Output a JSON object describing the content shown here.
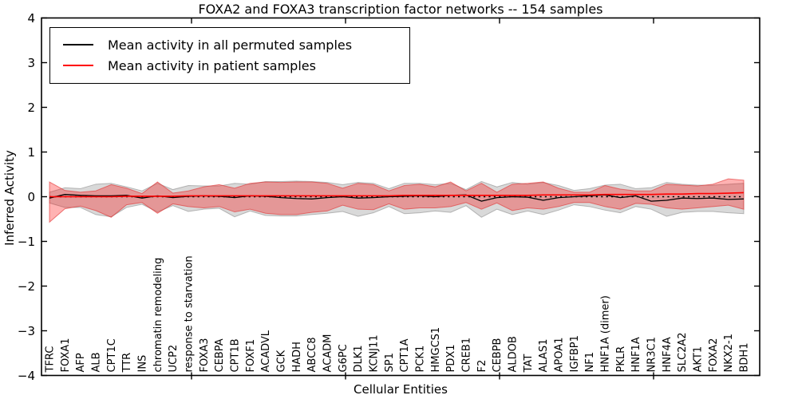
{
  "chart": {
    "title": "FOXA2 and FOXA3 transcription factor networks -- 154 samples",
    "xlabel": "Cellular Entities",
    "ylabel": "Inferred Activity",
    "legend": [
      {
        "label": "Mean activity in all permuted samples",
        "color": "#000000"
      },
      {
        "label": "Mean activity in patient samples",
        "color": "#ff0000"
      }
    ],
    "ytick_labels": [
      "4",
      "3",
      "2",
      "1",
      "0",
      "−1",
      "−2",
      "−3",
      "−4"
    ]
  },
  "chart_data": {
    "type": "line",
    "title": "FOXA2 and FOXA3 transcription factor networks -- 154 samples",
    "xlabel": "Cellular Entities",
    "ylabel": "Inferred Activity",
    "ylim": [
      -4,
      4
    ],
    "yticks": [
      4,
      3,
      2,
      1,
      0,
      -1,
      -2,
      -3,
      -4
    ],
    "grid": false,
    "legend_position": "upper left",
    "categories": [
      "TFRC",
      "FOXA1",
      "AFP",
      "ALB",
      "CPT1C",
      "TTR",
      "INS",
      "chromatin remodeling",
      "UCP2",
      "response to starvation",
      "FOXA3",
      "CEBPA",
      "CPT1B",
      "FOXF1",
      "ACADVL",
      "GCK",
      "HADH",
      "ABCC8",
      "ACADM",
      "G6PC",
      "DLK1",
      "KCNJ11",
      "SP1",
      "CPT1A",
      "PCK1",
      "HMGCS1",
      "PDX1",
      "CREB1",
      "F2",
      "CEBPB",
      "ALDOB",
      "TAT",
      "ALAS1",
      "APOA1",
      "IGFBP1",
      "NF1",
      "HNF1A (dimer)",
      "PKLR",
      "HNF1A",
      "NR3C1",
      "HNF4A",
      "SLC2A2",
      "AKT1",
      "FOXA2",
      "NKX2-1",
      "BDH1"
    ],
    "series": [
      {
        "name": "Mean activity in all permuted samples",
        "color": "#000000",
        "style": "solid",
        "width": 1.3,
        "values": [
          -0.03,
          0.05,
          0.03,
          0.02,
          0.02,
          0.03,
          -0.03,
          0.02,
          -0.02,
          0.01,
          0.02,
          0.01,
          -0.02,
          0.02,
          0.01,
          -0.02,
          -0.04,
          -0.05,
          -0.02,
          0.0,
          -0.03,
          -0.02,
          0.0,
          0.01,
          0.02,
          0.0,
          0.03,
          0.04,
          -0.1,
          -0.02,
          0.0,
          -0.01,
          -0.08,
          -0.02,
          0.0,
          0.02,
          0.04,
          -0.02,
          0.02,
          -0.1,
          -0.08,
          -0.03,
          -0.04,
          -0.03,
          -0.06,
          -0.05
        ]
      },
      {
        "name": "Mean activity in patient samples",
        "color": "#ff0000",
        "style": "solid",
        "width": 1.6,
        "values": [
          0.0,
          0.0,
          0.0,
          0.0,
          0.0,
          0.01,
          0.01,
          0.01,
          0.01,
          0.02,
          0.02,
          0.02,
          0.02,
          0.02,
          0.02,
          0.02,
          0.02,
          0.02,
          0.02,
          0.02,
          0.02,
          0.02,
          0.02,
          0.03,
          0.03,
          0.03,
          0.03,
          0.03,
          0.03,
          0.03,
          0.03,
          0.03,
          0.04,
          0.04,
          0.04,
          0.04,
          0.05,
          0.05,
          0.05,
          0.05,
          0.06,
          0.06,
          0.07,
          0.07,
          0.08,
          0.09
        ]
      },
      {
        "name": "zero reference",
        "color": "#000000",
        "style": "dotted",
        "width": 1.4,
        "constant": 0
      }
    ],
    "bands": [
      {
        "name": "permuted samples ± std",
        "fill": "rgba(128,128,128,0.30)",
        "edge": "rgba(110,110,110,0.45)",
        "upper": [
          0.1,
          0.2,
          0.18,
          0.28,
          0.3,
          0.22,
          0.13,
          0.3,
          0.16,
          0.25,
          0.24,
          0.24,
          0.3,
          0.28,
          0.34,
          0.34,
          0.35,
          0.34,
          0.32,
          0.27,
          0.32,
          0.3,
          0.18,
          0.3,
          0.3,
          0.27,
          0.3,
          0.16,
          0.34,
          0.22,
          0.32,
          0.28,
          0.32,
          0.25,
          0.14,
          0.18,
          0.26,
          0.28,
          0.18,
          0.2,
          0.32,
          0.28,
          0.26,
          0.26,
          0.28,
          0.3
        ],
        "lower": [
          -0.14,
          -0.24,
          -0.24,
          -0.4,
          -0.45,
          -0.24,
          -0.17,
          -0.34,
          -0.2,
          -0.33,
          -0.28,
          -0.26,
          -0.45,
          -0.32,
          -0.42,
          -0.43,
          -0.43,
          -0.4,
          -0.37,
          -0.33,
          -0.44,
          -0.36,
          -0.22,
          -0.38,
          -0.36,
          -0.32,
          -0.35,
          -0.2,
          -0.46,
          -0.28,
          -0.4,
          -0.32,
          -0.4,
          -0.3,
          -0.18,
          -0.22,
          -0.3,
          -0.36,
          -0.22,
          -0.28,
          -0.44,
          -0.35,
          -0.33,
          -0.33,
          -0.36,
          -0.38
        ]
      },
      {
        "name": "patient samples ± std",
        "fill": "rgba(255,0,0,0.30)",
        "edge": "rgba(225,45,45,0.60)",
        "upper": [
          0.33,
          0.14,
          0.1,
          0.13,
          0.27,
          0.19,
          0.07,
          0.33,
          0.08,
          0.13,
          0.22,
          0.27,
          0.19,
          0.3,
          0.33,
          0.32,
          0.33,
          0.33,
          0.3,
          0.19,
          0.3,
          0.27,
          0.13,
          0.25,
          0.28,
          0.22,
          0.33,
          0.13,
          0.3,
          0.1,
          0.28,
          0.3,
          0.33,
          0.19,
          0.1,
          0.1,
          0.25,
          0.17,
          0.13,
          0.13,
          0.28,
          0.26,
          0.24,
          0.28,
          0.4,
          0.37
        ],
        "lower": [
          -0.57,
          -0.27,
          -0.21,
          -0.31,
          -0.46,
          -0.18,
          -0.13,
          -0.37,
          -0.16,
          -0.22,
          -0.25,
          -0.22,
          -0.34,
          -0.28,
          -0.37,
          -0.4,
          -0.4,
          -0.35,
          -0.32,
          -0.19,
          -0.28,
          -0.29,
          -0.16,
          -0.28,
          -0.25,
          -0.25,
          -0.22,
          -0.13,
          -0.28,
          -0.14,
          -0.31,
          -0.25,
          -0.28,
          -0.22,
          -0.13,
          -0.13,
          -0.22,
          -0.28,
          -0.15,
          -0.17,
          -0.25,
          -0.28,
          -0.25,
          -0.22,
          -0.19,
          -0.28
        ]
      }
    ],
    "colors": {
      "axes": "#000000",
      "background": "#ffffff"
    }
  }
}
